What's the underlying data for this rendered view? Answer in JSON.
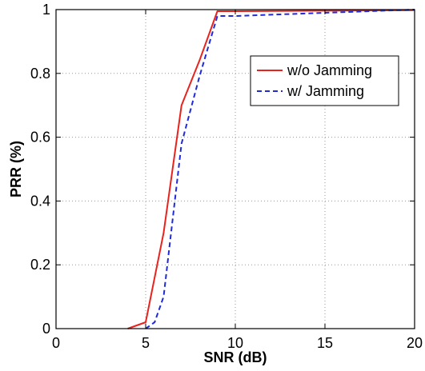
{
  "chart_data": {
    "type": "line",
    "title": "",
    "xlabel": "SNR (dB)",
    "ylabel": "PRR (%)",
    "xlim": [
      0,
      20
    ],
    "ylim": [
      0,
      1
    ],
    "xticks": [
      0,
      5,
      10,
      15,
      20
    ],
    "yticks": [
      0,
      0.2,
      0.4,
      0.6,
      0.8,
      1
    ],
    "xtick_labels": [
      "0",
      "5",
      "10",
      "15",
      "20"
    ],
    "ytick_labels": [
      "0",
      "0.2",
      "0.4",
      "0.6",
      "0.8",
      "1"
    ],
    "grid": true,
    "legend_position": "top-right",
    "series": [
      {
        "name": "w/o Jamming",
        "color": "#e8231d",
        "line_style": "solid",
        "x": [
          4,
          5,
          6,
          7,
          8,
          9,
          10,
          20
        ],
        "y": [
          0,
          0.02,
          0.3,
          0.7,
          0.84,
          0.995,
          0.995,
          0.998
        ]
      },
      {
        "name": "w/ Jamming",
        "color": "#1f2bd6",
        "line_style": "dashed",
        "x": [
          5,
          5.5,
          6,
          7,
          8,
          9,
          10,
          20
        ],
        "y": [
          0,
          0.02,
          0.1,
          0.58,
          0.79,
          0.98,
          0.98,
          1.0
        ]
      }
    ]
  }
}
